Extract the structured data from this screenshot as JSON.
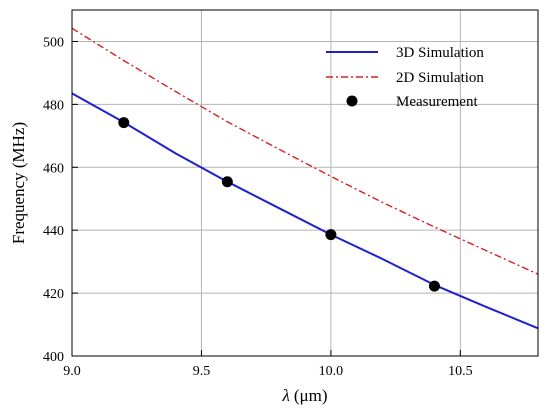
{
  "chart_data": {
    "type": "line",
    "xlabel_symbol": "λ",
    "xlabel_unit": "(μm)",
    "ylabel": "Frequency (MHz)",
    "xlim": [
      9.0,
      10.8
    ],
    "ylim": [
      400,
      510
    ],
    "x_ticks": [
      9.0,
      9.5,
      10.0,
      10.5
    ],
    "x_tick_labels": [
      "9.0",
      "9.5",
      "10.0",
      "10.5"
    ],
    "y_ticks": [
      400,
      420,
      440,
      460,
      480,
      500
    ],
    "y_tick_labels": [
      "400",
      "420",
      "440",
      "460",
      "480",
      "500"
    ],
    "grid": true,
    "legend_position": "top-right",
    "series": [
      {
        "name": "3D Simulation",
        "style": "solid",
        "color": "#1f1fd0",
        "x": [
          9.0,
          9.2,
          9.4,
          9.6,
          9.8,
          10.0,
          10.2,
          10.4,
          10.6,
          10.8
        ],
        "y": [
          483.5,
          474.3,
          464.4,
          455.4,
          447.0,
          438.6,
          430.8,
          422.6,
          415.6,
          408.8
        ]
      },
      {
        "name": "2D Simulation",
        "style": "dashdot",
        "color": "#d42020",
        "x": [
          9.0,
          9.2,
          9.4,
          9.6,
          9.8,
          10.0,
          10.2,
          10.4,
          10.6,
          10.8
        ],
        "y": [
          504.2,
          493.9,
          484.1,
          474.5,
          465.7,
          457.1,
          448.8,
          441.0,
          433.5,
          426.0
        ]
      },
      {
        "name": "Measurement",
        "style": "markers",
        "color": "#000000",
        "x": [
          9.2,
          9.6,
          10.0,
          10.4
        ],
        "y": [
          474.2,
          455.4,
          438.6,
          422.2
        ]
      }
    ]
  }
}
